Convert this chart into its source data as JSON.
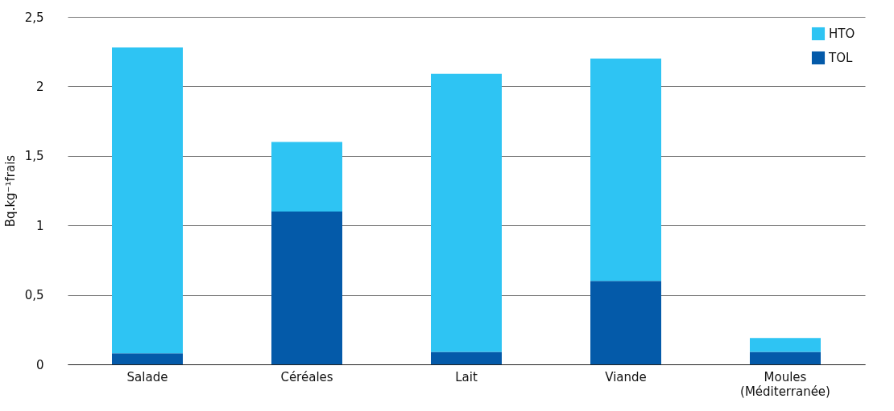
{
  "chart_data": {
    "type": "bar",
    "stacked": true,
    "ylabel": "Bq.kg⁻¹frais",
    "categories": [
      "Salade",
      "Céréales",
      "Lait",
      "Viande",
      "Moules\n(Méditerranée)"
    ],
    "series": [
      {
        "name": "TOL",
        "color": "#045aa9",
        "values": [
          0.08,
          1.1,
          0.09,
          0.6,
          0.09
        ]
      },
      {
        "name": "HTO",
        "color": "#2ec4f3",
        "values": [
          2.2,
          0.5,
          2.0,
          1.6,
          0.1
        ]
      }
    ],
    "ylim": [
      0,
      2.5
    ],
    "yticks": [
      0,
      {
        "value": 0.5,
        "label": "0,5"
      },
      1,
      {
        "value": 1.5,
        "label": "1,5"
      },
      2,
      {
        "value": 2.5,
        "label": "2,5"
      }
    ],
    "grid": "y",
    "legend": "top right"
  }
}
